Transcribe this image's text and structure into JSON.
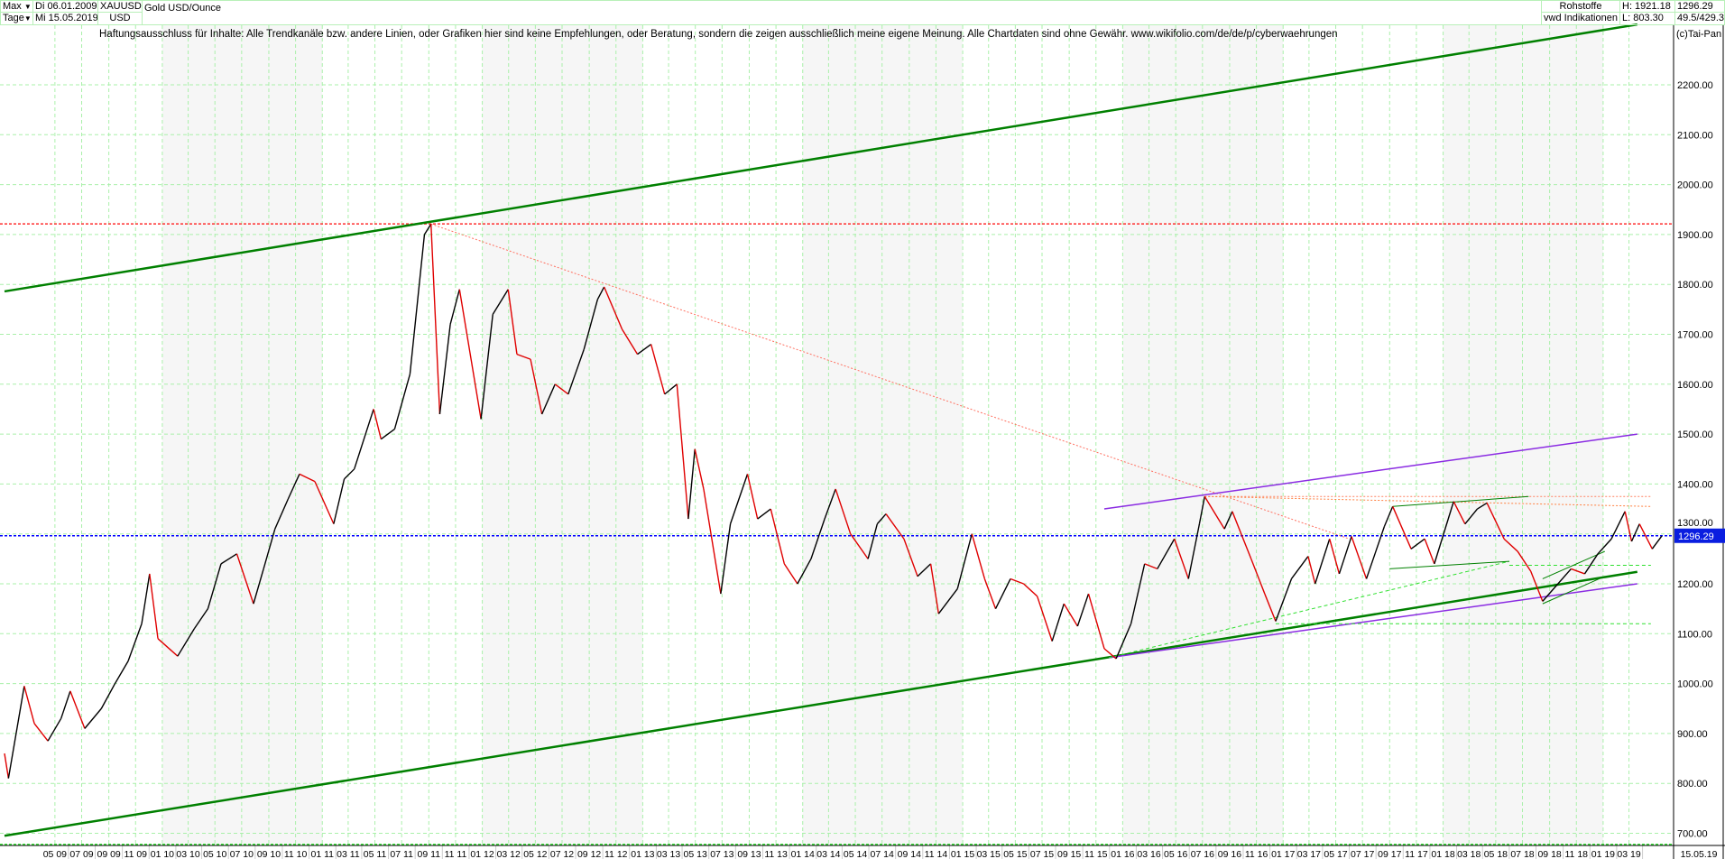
{
  "header": {
    "range_select": "Max",
    "interval_select": "Tage",
    "date_from": "Di 06.01.2009",
    "date_to": "Mi 15.05.2019",
    "symbol": "XAUUSD",
    "currency": "USD",
    "name": "Gold USD/Ounce",
    "category": "Rohstoffe",
    "source": "vwd Indikationen",
    "high": "H: 1921.18",
    "low": "L: 803.30",
    "last": "1296.29",
    "ratio": "49.5/429.3",
    "copyright": "(c)Tai-Pan"
  },
  "disclaimer": "Haftungsausschluss für Inhalte: Alle Trendkanäle bzw. andere Linien, oder Grafiken hier sind keine Empfehlungen, oder Beratung, sondern die zeigen ausschließlich meine eigene Meinung. Alle Chartdaten sind ohne Gewähr.  www.wikifolio.com/de/de/p/cyberwaehrungen",
  "chart_data": {
    "type": "line",
    "title": "Gold USD/Ounce",
    "ylim": [
      700,
      2300
    ],
    "yticks": [
      "700.00",
      "800.00",
      "900.00",
      "1000.00",
      "1100.00",
      "1200.00",
      "1300.00",
      "1400.00",
      "1500.00",
      "1600.00",
      "1700.00",
      "1800.00",
      "1900.00",
      "2000.00",
      "2100.00",
      "2200.00"
    ],
    "xlim": [
      "2009-01-06",
      "2019-05-15"
    ],
    "xticks": [
      "05 09",
      "07 09",
      "09 09",
      "11 09",
      "01 10",
      "03 10",
      "05 10",
      "07 10",
      "09 10",
      "11 10",
      "01 11",
      "03 11",
      "05 11",
      "07 11",
      "09 11",
      "11 11",
      "01 12",
      "03 12",
      "05 12",
      "07 12",
      "09 12",
      "11 12",
      "01 13",
      "03 13",
      "05 13",
      "07 13",
      "09 13",
      "11 13",
      "01 14",
      "03 14",
      "05 14",
      "07 14",
      "09 14",
      "11 14",
      "01 15",
      "03 15",
      "05 15",
      "07 15",
      "09 15",
      "11 15",
      "01 16",
      "03 16",
      "05 16",
      "07 16",
      "09 16",
      "11 16",
      "01 17",
      "03 17",
      "05 17",
      "07 17",
      "09 17",
      "11 17",
      "01 18",
      "03 18",
      "05 18",
      "07 18",
      "09 18",
      "11 18",
      "01 19",
      "03 19"
    ],
    "end_label": "15.05.19",
    "grid": true,
    "colors": {
      "up": "#000000",
      "down": "#e00000",
      "grid": "#aaf0aa",
      "last_line": "#0000ff",
      "high_line": "#ff3030"
    },
    "last_price": 1296.29,
    "last_price_label": "1296.29",
    "high_price": 1921.18,
    "series": [
      [
        "2009-01-06",
        860
      ],
      [
        "2009-01-15",
        810
      ],
      [
        "2009-02-20",
        995
      ],
      [
        "2009-03-15",
        920
      ],
      [
        "2009-04-15",
        885
      ],
      [
        "2009-05-15",
        930
      ],
      [
        "2009-06-05",
        985
      ],
      [
        "2009-07-08",
        910
      ],
      [
        "2009-08-15",
        950
      ],
      [
        "2009-09-15",
        1000
      ],
      [
        "2009-10-15",
        1045
      ],
      [
        "2009-11-15",
        1120
      ],
      [
        "2009-12-03",
        1220
      ],
      [
        "2009-12-22",
        1090
      ],
      [
        "2010-02-05",
        1055
      ],
      [
        "2010-03-15",
        1110
      ],
      [
        "2010-04-15",
        1150
      ],
      [
        "2010-05-15",
        1240
      ],
      [
        "2010-06-20",
        1260
      ],
      [
        "2010-07-28",
        1160
      ],
      [
        "2010-08-20",
        1230
      ],
      [
        "2010-09-15",
        1310
      ],
      [
        "2010-10-15",
        1370
      ],
      [
        "2010-11-10",
        1420
      ],
      [
        "2010-12-15",
        1405
      ],
      [
        "2011-01-27",
        1320
      ],
      [
        "2011-02-20",
        1410
      ],
      [
        "2011-03-15",
        1430
      ],
      [
        "2011-04-28",
        1550
      ],
      [
        "2011-05-15",
        1490
      ],
      [
        "2011-06-15",
        1510
      ],
      [
        "2011-07-20",
        1620
      ],
      [
        "2011-08-22",
        1900
      ],
      [
        "2011-09-06",
        1921
      ],
      [
        "2011-09-26",
        1540
      ],
      [
        "2011-10-20",
        1720
      ],
      [
        "2011-11-10",
        1790
      ],
      [
        "2011-12-29",
        1530
      ],
      [
        "2012-01-25",
        1740
      ],
      [
        "2012-02-29",
        1790
      ],
      [
        "2012-03-20",
        1660
      ],
      [
        "2012-04-20",
        1650
      ],
      [
        "2012-05-16",
        1540
      ],
      [
        "2012-06-15",
        1600
      ],
      [
        "2012-07-15",
        1580
      ],
      [
        "2012-08-20",
        1670
      ],
      [
        "2012-09-20",
        1770
      ],
      [
        "2012-10-05",
        1795
      ],
      [
        "2012-11-15",
        1710
      ],
      [
        "2012-12-20",
        1660
      ],
      [
        "2013-01-20",
        1680
      ],
      [
        "2013-02-20",
        1580
      ],
      [
        "2013-03-20",
        1600
      ],
      [
        "2013-04-15",
        1330
      ],
      [
        "2013-04-30",
        1470
      ],
      [
        "2013-05-20",
        1390
      ],
      [
        "2013-06-28",
        1180
      ],
      [
        "2013-07-20",
        1320
      ],
      [
        "2013-08-28",
        1420
      ],
      [
        "2013-09-20",
        1330
      ],
      [
        "2013-10-20",
        1350
      ],
      [
        "2013-11-20",
        1240
      ],
      [
        "2013-12-20",
        1200
      ],
      [
        "2014-01-20",
        1250
      ],
      [
        "2014-02-20",
        1330
      ],
      [
        "2014-03-17",
        1390
      ],
      [
        "2014-04-20",
        1300
      ],
      [
        "2014-05-30",
        1250
      ],
      [
        "2014-06-20",
        1320
      ],
      [
        "2014-07-10",
        1340
      ],
      [
        "2014-08-20",
        1290
      ],
      [
        "2014-09-20",
        1215
      ],
      [
        "2014-10-20",
        1240
      ],
      [
        "2014-11-07",
        1140
      ],
      [
        "2014-12-20",
        1190
      ],
      [
        "2015-01-22",
        1300
      ],
      [
        "2015-02-20",
        1210
      ],
      [
        "2015-03-17",
        1150
      ],
      [
        "2015-04-20",
        1210
      ],
      [
        "2015-05-20",
        1200
      ],
      [
        "2015-06-20",
        1175
      ],
      [
        "2015-07-24",
        1085
      ],
      [
        "2015-08-20",
        1160
      ],
      [
        "2015-09-20",
        1115
      ],
      [
        "2015-10-15",
        1180
      ],
      [
        "2015-11-20",
        1070
      ],
      [
        "2015-12-17",
        1050
      ],
      [
        "2016-01-20",
        1120
      ],
      [
        "2016-02-20",
        1240
      ],
      [
        "2016-03-20",
        1230
      ],
      [
        "2016-04-28",
        1290
      ],
      [
        "2016-05-30",
        1210
      ],
      [
        "2016-06-24",
        1320
      ],
      [
        "2016-07-06",
        1375
      ],
      [
        "2016-08-20",
        1310
      ],
      [
        "2016-09-07",
        1345
      ],
      [
        "2016-10-20",
        1250
      ],
      [
        "2016-11-20",
        1180
      ],
      [
        "2016-12-15",
        1125
      ],
      [
        "2017-01-20",
        1210
      ],
      [
        "2017-02-27",
        1255
      ],
      [
        "2017-03-15",
        1200
      ],
      [
        "2017-04-17",
        1290
      ],
      [
        "2017-05-09",
        1220
      ],
      [
        "2017-06-06",
        1295
      ],
      [
        "2017-07-10",
        1210
      ],
      [
        "2017-08-20",
        1315
      ],
      [
        "2017-09-08",
        1355
      ],
      [
        "2017-10-20",
        1270
      ],
      [
        "2017-11-20",
        1290
      ],
      [
        "2017-12-12",
        1240
      ],
      [
        "2018-01-25",
        1365
      ],
      [
        "2018-02-20",
        1320
      ],
      [
        "2018-03-20",
        1350
      ],
      [
        "2018-04-11",
        1362
      ],
      [
        "2018-05-20",
        1290
      ],
      [
        "2018-06-20",
        1265
      ],
      [
        "2018-07-20",
        1225
      ],
      [
        "2018-08-16",
        1165
      ],
      [
        "2018-09-20",
        1200
      ],
      [
        "2018-10-20",
        1230
      ],
      [
        "2018-11-20",
        1220
      ],
      [
        "2018-12-20",
        1260
      ],
      [
        "2019-01-20",
        1290
      ],
      [
        "2019-02-20",
        1345
      ],
      [
        "2019-03-07",
        1285
      ],
      [
        "2019-03-25",
        1320
      ],
      [
        "2019-04-23",
        1270
      ],
      [
        "2019-05-15",
        1296
      ]
    ],
    "trendlines": [
      {
        "color": "#008000",
        "width": 2.5,
        "style": "solid",
        "from": [
          "2009-01-06",
          1786
        ],
        "to": [
          "2019-03-20",
          2321
        ]
      },
      {
        "color": "#008000",
        "width": 2.5,
        "style": "solid",
        "from": [
          "2009-01-06",
          695
        ],
        "to": [
          "2019-03-20",
          1224
        ]
      },
      {
        "color": "#ff7060",
        "width": 1,
        "style": "dotted",
        "from": [
          "2011-09-06",
          1921
        ],
        "to": [
          "2017-06-01",
          1290
        ]
      },
      {
        "color": "#8a2be2",
        "width": 1.5,
        "style": "solid",
        "from": [
          "2015-11-20",
          1350
        ],
        "to": [
          "2019-03-20",
          1500
        ]
      },
      {
        "color": "#8a2be2",
        "width": 1.5,
        "style": "solid",
        "from": [
          "2015-12-01",
          1052
        ],
        "to": [
          "2019-03-20",
          1200
        ]
      },
      {
        "color": "#30e030",
        "width": 1,
        "style": "dashed",
        "from": [
          "2015-12-01",
          1052
        ],
        "to": [
          "2018-06-01",
          1245
        ]
      },
      {
        "color": "#ff8060",
        "width": 1,
        "style": "dotted",
        "from": [
          "2016-07-06",
          1375
        ],
        "to": [
          "2019-04-20",
          1375
        ]
      },
      {
        "color": "#ff8040",
        "width": 1,
        "style": "dotted",
        "from": [
          "2016-07-06",
          1375
        ],
        "to": [
          "2019-04-20",
          1355
        ]
      },
      {
        "color": "#008000",
        "width": 1,
        "style": "solid",
        "from": [
          "2017-09-08",
          1355
        ],
        "to": [
          "2018-07-15",
          1375
        ]
      },
      {
        "color": "#008000",
        "width": 1,
        "style": "solid",
        "from": [
          "2017-09-01",
          1230
        ],
        "to": [
          "2018-06-01",
          1245
        ]
      },
      {
        "color": "#30e030",
        "width": 1,
        "style": "dashed",
        "from": [
          "2018-06-01",
          1237
        ],
        "to": [
          "2019-04-20",
          1237
        ]
      },
      {
        "color": "#30e030",
        "width": 1,
        "style": "dashed",
        "from": [
          "2016-12-15",
          1120
        ],
        "to": [
          "2019-04-20",
          1120
        ]
      },
      {
        "color": "#008000",
        "width": 1,
        "style": "solid",
        "from": [
          "2018-08-16",
          1210
        ],
        "to": [
          "2019-01-05",
          1265
        ]
      },
      {
        "color": "#008000",
        "width": 1,
        "style": "solid",
        "from": [
          "2018-08-16",
          1160
        ],
        "to": [
          "2019-01-05",
          1215
        ]
      }
    ]
  }
}
